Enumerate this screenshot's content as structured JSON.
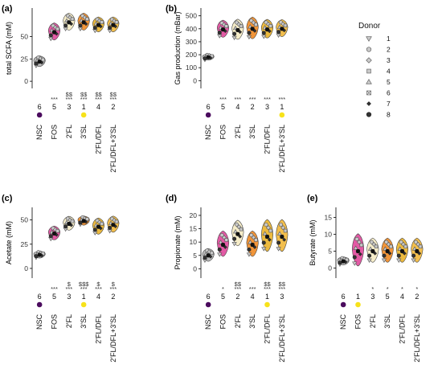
{
  "colors": {
    "NSC": "#b3b3b3",
    "FOS": "#e0489b",
    "2'FL": "#f5ebc3",
    "3'SL": "#ef8a23",
    "2'FL/DFL": "#eab32a",
    "2'FL/DFL+3'SL": "#f2b83a",
    "rank_low": "#4b0c5e",
    "rank_high": "#f7e21a"
  },
  "categories": [
    "NSC",
    "FOS",
    "2'FL",
    "3'SL",
    "2'FL/DFL",
    "2'FL/DFL+3'SL"
  ],
  "legend": {
    "title": "Donor",
    "entries": [
      {
        "label": "1",
        "shape": "triangle-down"
      },
      {
        "label": "2",
        "shape": "circle"
      },
      {
        "label": "3",
        "shape": "diamond"
      },
      {
        "label": "4",
        "shape": "square"
      },
      {
        "label": "5",
        "shape": "triangle-up"
      },
      {
        "label": "6",
        "shape": "square-x"
      },
      {
        "label": "7",
        "shape": "diamond-small"
      },
      {
        "label": "8",
        "shape": "circle-dark"
      }
    ]
  },
  "chart_data": [
    {
      "type": "violin",
      "panel": "(a)",
      "ylabel": "total SCFA (mM)",
      "yticks": [
        0,
        25,
        50
      ],
      "ylim": [
        -8,
        82
      ],
      "medians": [
        22,
        55,
        66,
        66,
        63,
        63
      ],
      "spreads": [
        5,
        8,
        8,
        8,
        7,
        7
      ],
      "ranks": [
        "6",
        "5",
        "3",
        "1",
        "4",
        "2"
      ],
      "sig_top": [
        "",
        "",
        "$$",
        "$$",
        "$$",
        "$$"
      ],
      "sig_bottom": [
        "",
        "***",
        "***",
        "***",
        "***",
        "***"
      ],
      "rank_dot_color": [
        "rank_low",
        "",
        "",
        "rank_high",
        "",
        ""
      ]
    },
    {
      "type": "violin",
      "panel": "(b)",
      "ylabel": "Gas production (mBar)",
      "yticks": [
        0,
        100,
        200,
        300,
        400,
        500
      ],
      "ylim": [
        -60,
        560
      ],
      "medians": [
        180,
        395,
        390,
        400,
        395,
        400
      ],
      "spreads": [
        20,
        55,
        65,
        70,
        60,
        55
      ],
      "ranks": [
        "6",
        "5",
        "4",
        "2",
        "3",
        "1"
      ],
      "sig_top": [
        "",
        "",
        "",
        "",
        "",
        ""
      ],
      "sig_bottom": [
        "",
        "***",
        "***",
        "***",
        "***",
        "***"
      ],
      "rank_dot_color": [
        "rank_low",
        "",
        "",
        "",
        "",
        "rank_high"
      ]
    },
    {
      "type": "violin",
      "panel": "(c)",
      "ylabel": "Acetate (mM)",
      "yticks": [
        0,
        25,
        50
      ],
      "ylim": [
        -10,
        63
      ],
      "medians": [
        14,
        36,
        46,
        49,
        43,
        45
      ],
      "spreads": [
        3,
        6,
        6,
        4,
        7,
        7
      ],
      "ranks": [
        "6",
        "5",
        "3",
        "1",
        "4",
        "2"
      ],
      "sig_top": [
        "",
        "",
        "$",
        "$$$",
        "$",
        "$"
      ],
      "sig_bottom": [
        "",
        "***",
        "***",
        "***",
        "***",
        "***"
      ],
      "rank_dot_color": [
        "rank_low",
        "",
        "",
        "rank_high",
        "",
        ""
      ]
    },
    {
      "type": "violin",
      "panel": "(d)",
      "ylabel": "Propionate (mM)",
      "yticks": [
        0,
        5,
        10,
        15,
        20
      ],
      "ylim": [
        -3.5,
        23
      ],
      "medians": [
        5,
        9,
        13,
        9,
        12,
        12
      ],
      "spreads": [
        2,
        4,
        4,
        4,
        5,
        5
      ],
      "ranks": [
        "6",
        "5",
        "2",
        "4",
        "1",
        "3"
      ],
      "sig_top": [
        "",
        "",
        "$$",
        "",
        "$$",
        "$$"
      ],
      "sig_bottom": [
        "",
        "*",
        "***",
        "***",
        "***",
        "***"
      ],
      "rank_dot_color": [
        "rank_low",
        "",
        "",
        "",
        "rank_high",
        ""
      ]
    },
    {
      "type": "violin",
      "panel": "(e)",
      "ylabel": "Butyrate (mM)",
      "yticks": [
        0,
        5,
        10,
        15
      ],
      "ylim": [
        -3,
        18
      ],
      "medians": [
        2,
        5,
        5,
        5,
        5,
        5
      ],
      "spreads": [
        1,
        4,
        3,
        3,
        3,
        3
      ],
      "ranks": [
        "6",
        "1",
        "3",
        "5",
        "4",
        "2"
      ],
      "sig_top": [
        "",
        "",
        "",
        "",
        "",
        ""
      ],
      "sig_bottom": [
        "",
        "",
        "*",
        "*",
        "*",
        "*"
      ],
      "rank_dot_color": [
        "rank_low",
        "rank_high",
        "",
        "",
        "",
        ""
      ]
    }
  ]
}
